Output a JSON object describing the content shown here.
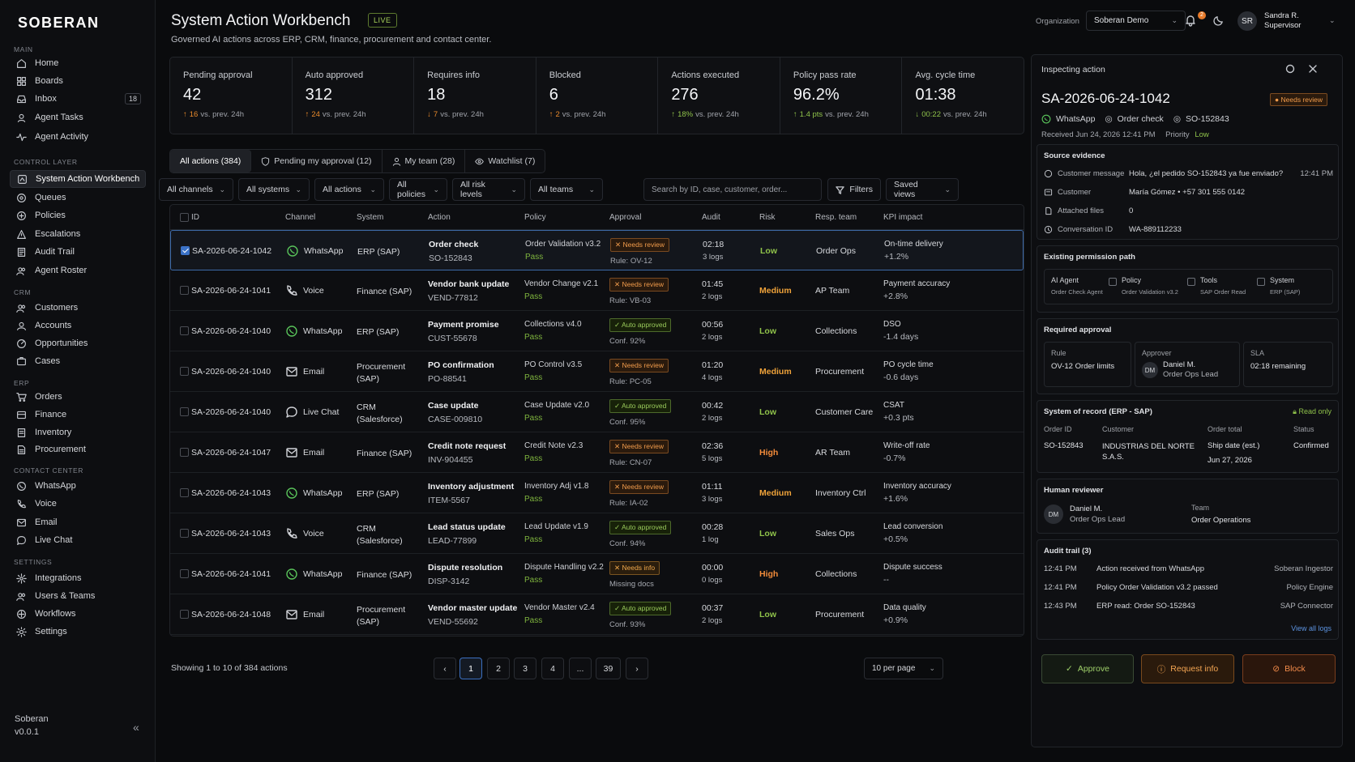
{
  "brand": "SOBERAN",
  "sidebar": {
    "sections": [
      {
        "title": "MAIN",
        "items": [
          {
            "label": "Home",
            "icon": "home-icon"
          },
          {
            "label": "Boards",
            "icon": "boards-icon"
          },
          {
            "label": "Inbox",
            "icon": "inbox-icon",
            "badge": "18"
          },
          {
            "label": "Agent Tasks",
            "icon": "tasks-icon"
          },
          {
            "label": "Agent Activity",
            "icon": "activity-icon"
          }
        ]
      },
      {
        "title": "CONTROL LAYER",
        "items": [
          {
            "label": "System Action Workbench",
            "icon": "workbench-icon",
            "active": true
          },
          {
            "label": "Queues",
            "icon": "queues-icon"
          },
          {
            "label": "Policies",
            "icon": "policies-icon"
          },
          {
            "label": "Escalations",
            "icon": "warning-icon"
          },
          {
            "label": "Audit Trail",
            "icon": "audit-icon"
          },
          {
            "label": "Agent Roster",
            "icon": "roster-icon"
          }
        ]
      },
      {
        "title": "CRM",
        "items": [
          {
            "label": "Customers",
            "icon": "users-icon"
          },
          {
            "label": "Accounts",
            "icon": "accounts-icon"
          },
          {
            "label": "Opportunities",
            "icon": "opportunities-icon"
          },
          {
            "label": "Cases",
            "icon": "cases-icon"
          }
        ]
      },
      {
        "title": "ERP",
        "items": [
          {
            "label": "Orders",
            "icon": "cart-icon"
          },
          {
            "label": "Finance",
            "icon": "finance-icon"
          },
          {
            "label": "Inventory",
            "icon": "inventory-icon"
          },
          {
            "label": "Procurement",
            "icon": "procurement-icon"
          }
        ]
      },
      {
        "title": "CONTACT CENTER",
        "items": [
          {
            "label": "WhatsApp",
            "icon": "whatsapp-icon"
          },
          {
            "label": "Voice",
            "icon": "phone-icon"
          },
          {
            "label": "Email",
            "icon": "mail-icon"
          },
          {
            "label": "Live Chat",
            "icon": "chat-icon"
          }
        ]
      },
      {
        "title": "SETTINGS",
        "items": [
          {
            "label": "Integrations",
            "icon": "integrations-icon"
          },
          {
            "label": "Users & Teams",
            "icon": "users-icon"
          },
          {
            "label": "Workflows",
            "icon": "workflows-icon"
          },
          {
            "label": "Settings",
            "icon": "gear-icon"
          }
        ]
      }
    ],
    "footer": {
      "name": "Soberan",
      "version": "v0.0.1"
    }
  },
  "header": {
    "title": "System Action Workbench",
    "live": "LIVE",
    "subtitle": "Governed AI actions across ERP, CRM, finance, procurement and contact center.",
    "org_label": "Organization",
    "org_value": "Soberan Demo",
    "notif_count": "2",
    "user_initials": "SR",
    "user_name": "Sandra R.",
    "user_role": "Supervisor"
  },
  "kpis": [
    {
      "label": "Pending approval",
      "value": "42",
      "dir": "up",
      "delta": "16",
      "suffix": "vs. prev. 24h"
    },
    {
      "label": "Auto approved",
      "value": "312",
      "dir": "up",
      "delta": "24",
      "suffix": "vs. prev. 24h"
    },
    {
      "label": "Requires info",
      "value": "18",
      "dir": "down",
      "delta": "7",
      "suffix": "vs. prev. 24h"
    },
    {
      "label": "Blocked",
      "value": "6",
      "dir": "up",
      "delta": "2",
      "suffix": "vs. prev. 24h"
    },
    {
      "label": "Actions executed",
      "value": "276",
      "dir": "up",
      "delta": "18%",
      "suffix": "vs. prev. 24h"
    },
    {
      "label": "Policy pass rate",
      "value": "96.2%",
      "dir": "up",
      "delta": "1.4 pts",
      "suffix": "vs. prev. 24h"
    },
    {
      "label": "Avg. cycle time",
      "value": "01:38",
      "dir": "down",
      "delta": "00:22",
      "suffix": "vs. prev. 24h"
    }
  ],
  "tabs": [
    {
      "label": "All actions  (384)",
      "active": true
    },
    {
      "label": "Pending my approval (12)",
      "icon": "shield-icon"
    },
    {
      "label": "My team (28)",
      "icon": "user-icon"
    },
    {
      "label": "Watchlist (7)",
      "icon": "eye-icon"
    }
  ],
  "filters": [
    "All channels",
    "All systems",
    "All actions",
    "All policies",
    "All risk levels",
    "All teams"
  ],
  "search_placeholder": "Search by ID, case, customer, order...",
  "filters_btn": "Filters",
  "saved_views": "Saved views",
  "columns": [
    "ID",
    "Channel",
    "System",
    "Action",
    "Policy",
    "Approval",
    "Audit",
    "Risk",
    "Resp. team",
    "KPI impact"
  ],
  "rows": [
    {
      "id": "SA-2026-06-24-1042",
      "channel": "WhatsApp",
      "channel_icon": "whatsapp-icon",
      "system": "ERP (SAP)",
      "system2": "",
      "action": "Order check",
      "ref": "SO-152843",
      "policy": "Order Validation v3.2",
      "pass": "Pass",
      "approval": "Needs review",
      "approval_type": "needs",
      "rule": "Rule: OV-12",
      "time": "02:18",
      "logs": "3 logs",
      "risk": "Low",
      "team": "Order Ops",
      "kpi": "On-time delivery",
      "kpi_val": "+1.2%",
      "selected": true
    },
    {
      "id": "SA-2026-06-24-1041",
      "channel": "Voice",
      "channel_icon": "phone-icon",
      "system": "Finance (SAP)",
      "system2": "",
      "action": "Vendor bank update",
      "ref": "VEND-77812",
      "policy": "Vendor Change v2.1",
      "pass": "Pass",
      "approval": "Needs review",
      "approval_type": "needs",
      "rule": "Rule: VB-03",
      "time": "01:45",
      "logs": "2 logs",
      "risk": "Medium",
      "team": "AP Team",
      "kpi": "Payment accuracy",
      "kpi_val": "+2.8%"
    },
    {
      "id": "SA-2026-06-24-1040",
      "channel": "WhatsApp",
      "channel_icon": "whatsapp-icon",
      "system": "ERP (SAP)",
      "system2": "",
      "action": "Payment promise",
      "ref": "CUST-55678",
      "policy": "Collections v4.0",
      "pass": "Pass",
      "approval": "Auto approved",
      "approval_type": "auto",
      "rule": "Conf. 92%",
      "time": "00:56",
      "logs": "2 logs",
      "risk": "Low",
      "team": "Collections",
      "kpi": "DSO",
      "kpi_val": "-1.4 days"
    },
    {
      "id": "SA-2026-06-24-1040",
      "channel": "Email",
      "channel_icon": "mail-icon",
      "system": "Procurement",
      "system2": "(SAP)",
      "action": "PO confirmation",
      "ref": "PO-88541",
      "policy": "PO Control v3.5",
      "pass": "Pass",
      "approval": "Needs review",
      "approval_type": "needs",
      "rule": "Rule: PC-05",
      "time": "01:20",
      "logs": "4 logs",
      "risk": "Medium",
      "team": "Procurement",
      "kpi": "PO cycle time",
      "kpi_val": "-0.6 days"
    },
    {
      "id": "SA-2026-06-24-1040",
      "channel": "Live Chat",
      "channel_icon": "chat-icon",
      "system": "CRM",
      "system2": "(Salesforce)",
      "action": "Case update",
      "ref": "CASE-009810",
      "policy": "Case Update v2.0",
      "pass": "Pass",
      "approval": "Auto approved",
      "approval_type": "auto",
      "rule": "Conf. 95%",
      "time": "00:42",
      "logs": "2 logs",
      "risk": "Low",
      "team": "Customer Care",
      "kpi": "CSAT",
      "kpi_val": "+0.3 pts"
    },
    {
      "id": "SA-2026-06-24-1047",
      "channel": "Email",
      "channel_icon": "mail-icon",
      "system": "Finance (SAP)",
      "system2": "",
      "action": "Credit note request",
      "ref": "INV-904455",
      "policy": "Credit Note v2.3",
      "pass": "Pass",
      "approval": "Needs review",
      "approval_type": "needs",
      "rule": "Rule: CN-07",
      "time": "02:36",
      "logs": "5 logs",
      "risk": "High",
      "team": "AR Team",
      "kpi": "Write-off rate",
      "kpi_val": "-0.7%"
    },
    {
      "id": "SA-2026-06-24-1043",
      "channel": "WhatsApp",
      "channel_icon": "whatsapp-icon",
      "system": "ERP (SAP)",
      "system2": "",
      "action": "Inventory adjustment",
      "ref": "ITEM-5567",
      "policy": "Inventory Adj v1.8",
      "pass": "Pass",
      "approval": "Needs review",
      "approval_type": "needs",
      "rule": "Rule: IA-02",
      "time": "01:11",
      "logs": "3 logs",
      "risk": "Medium",
      "team": "Inventory Ctrl",
      "kpi": "Inventory accuracy",
      "kpi_val": "+1.6%"
    },
    {
      "id": "SA-2026-06-24-1043",
      "channel": "Voice",
      "channel_icon": "phone-icon",
      "system": "CRM",
      "system2": "(Salesforce)",
      "action": "Lead status update",
      "ref": "LEAD-77899",
      "policy": "Lead Update v1.9",
      "pass": "Pass",
      "approval": "Auto approved",
      "approval_type": "auto",
      "rule": "Conf. 94%",
      "time": "00:28",
      "logs": "1 log",
      "risk": "Low",
      "team": "Sales Ops",
      "kpi": "Lead conversion",
      "kpi_val": "+0.5%"
    },
    {
      "id": "SA-2026-06-24-1041",
      "channel": "WhatsApp",
      "channel_icon": "whatsapp-icon",
      "system": "Finance (SAP)",
      "system2": "",
      "action": "Dispute resolution",
      "ref": "DISP-3142",
      "policy": "Dispute Handling v2.2",
      "pass": "Pass",
      "approval": "Needs info",
      "approval_type": "info",
      "rule": "Missing docs",
      "time": "00:00",
      "logs": "0 logs",
      "risk": "High",
      "team": "Collections",
      "kpi": "Dispute success",
      "kpi_val": "--"
    },
    {
      "id": "SA-2026-06-24-1048",
      "channel": "Email",
      "channel_icon": "mail-icon",
      "system": "Procurement",
      "system2": "(SAP)",
      "action": "Vendor master update",
      "ref": "VEND-55692",
      "policy": "Vendor Master v2.4",
      "pass": "Pass",
      "approval": "Auto approved",
      "approval_type": "auto",
      "rule": "Conf. 93%",
      "time": "00:37",
      "logs": "2 logs",
      "risk": "Low",
      "team": "Procurement",
      "kpi": "Data quality",
      "kpi_val": "+0.9%"
    }
  ],
  "footer": {
    "showing": "Showing 1 to 10 of 384 actions",
    "pages": [
      "1",
      "2",
      "3",
      "4",
      "...",
      "39"
    ],
    "per_page": "10 per page"
  },
  "panel": {
    "title": "Inspecting action",
    "id": "SA-2026-06-24-1042",
    "status": "Needs review",
    "channel": "WhatsApp",
    "action": "Order check",
    "ref": "SO-152843",
    "received": "Received Jun 24, 2026 12:41 PM",
    "priority_label": "Priority",
    "priority": "Low",
    "evidence_title": "Source evidence",
    "evidence": [
      {
        "k": "Customer message",
        "v": "Hola, ¿el pedido SO-152843 ya fue enviado?",
        "t": "12:41 PM",
        "icon": "message-icon"
      },
      {
        "k": "Customer",
        "v": "María Gómez • +57 301 555 0142",
        "t": "",
        "icon": "user-card-icon"
      },
      {
        "k": "Attached files",
        "v": "0",
        "t": "",
        "icon": "file-icon"
      },
      {
        "k": "Conversation ID",
        "v": "WA-889112233",
        "t": "",
        "icon": "link-icon"
      }
    ],
    "perm_title": "Existing permission path",
    "perm": [
      {
        "k": "AI Agent",
        "s": "Order Check Agent"
      },
      {
        "k": "Policy",
        "s": "Order Validation v3.2"
      },
      {
        "k": "Tools",
        "s": "SAP Order Read"
      },
      {
        "k": "System",
        "s": "ERP (SAP)"
      }
    ],
    "approval_title": "Required approval",
    "rule_label": "Rule",
    "rule_value": "OV-12 Order limits",
    "approver_label": "Approver",
    "approver_initials": "DM",
    "approver_name": "Daniel M.",
    "approver_role": "Order Ops Lead",
    "sla_label": "SLA",
    "sla_value": "02:18 remaining",
    "sor_title": "System of record (ERP - SAP)",
    "sor_readonly": "Read only",
    "sor_cols": [
      "Order ID",
      "Customer",
      "Order total",
      "Status"
    ],
    "sor_order": "SO-152843",
    "sor_customer": "INDUSTRIAS DEL NORTE S.A.S.",
    "sor_ship_label": "Ship date (est.)",
    "sor_ship": "Jun 27, 2026",
    "sor_status": "Confirmed",
    "reviewer_title": "Human reviewer",
    "reviewer_initials": "DM",
    "reviewer_name": "Daniel M.",
    "reviewer_role": "Order Ops Lead",
    "team_label": "Team",
    "team_value": "Order Operations",
    "audit_title": "Audit trail (3)",
    "audit": [
      {
        "t": "12:41 PM",
        "e": "Action received from WhatsApp",
        "s": "Soberan Ingestor"
      },
      {
        "t": "12:41 PM",
        "e": "Policy Order Validation v3.2 passed",
        "s": "Policy Engine"
      },
      {
        "t": "12:43 PM",
        "e": "ERP read: Order SO-152843",
        "s": "SAP Connector"
      }
    ],
    "view_all": "View all logs",
    "approve": "Approve",
    "request_info": "Request info",
    "block": "Block"
  }
}
